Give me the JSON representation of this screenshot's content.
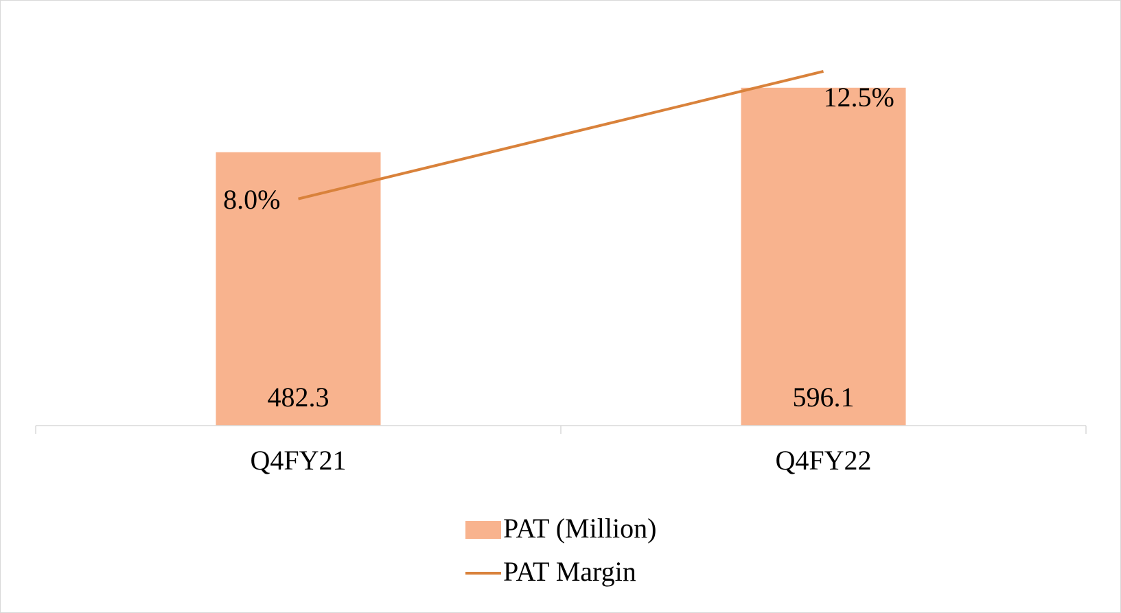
{
  "chart_data": {
    "type": "bar",
    "categories": [
      "Q4FY21",
      "Q4FY22"
    ],
    "series": [
      {
        "name": "PAT (Million)",
        "type": "bar",
        "color": "#f8b38e",
        "values": [
          482.3,
          596.1
        ]
      },
      {
        "name": "PAT Margin",
        "type": "line",
        "axis": "y2",
        "color": "#d9823b",
        "values": [
          8.0,
          12.5
        ],
        "value_labels": [
          "8.0%",
          "12.5%"
        ]
      }
    ],
    "ylim": [
      0,
      700
    ],
    "y2lim": [
      0,
      14
    ],
    "legend": "bottom"
  }
}
